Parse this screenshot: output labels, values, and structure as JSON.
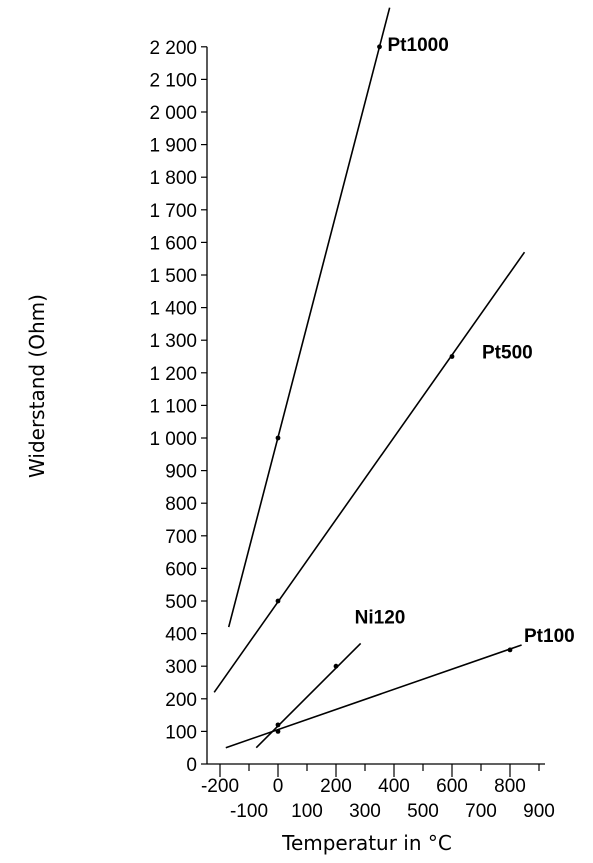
{
  "chart_data": {
    "type": "line",
    "xlabel": "Temperatur in °C",
    "ylabel": "Widerstand (Ohm)",
    "xlim": [
      -230,
      900
    ],
    "ylim": [
      0,
      2200
    ],
    "x_ticks_major": [
      -200,
      0,
      200,
      400,
      600,
      800
    ],
    "x_ticks_minor": [
      -100,
      100,
      300,
      500,
      700,
      900
    ],
    "y_ticks": [
      {
        "value": 0,
        "label": "0"
      },
      {
        "value": 100,
        "label": "100"
      },
      {
        "value": 200,
        "label": "200"
      },
      {
        "value": 300,
        "label": "300"
      },
      {
        "value": 400,
        "label": "400"
      },
      {
        "value": 500,
        "label": "500"
      },
      {
        "value": 600,
        "label": "600"
      },
      {
        "value": 700,
        "label": "700"
      },
      {
        "value": 800,
        "label": "800"
      },
      {
        "value": 900,
        "label": "900"
      },
      {
        "value": 1000,
        "label": "1 000"
      },
      {
        "value": 1100,
        "label": "1 100"
      },
      {
        "value": 1200,
        "label": "1 200"
      },
      {
        "value": 1300,
        "label": "1 300"
      },
      {
        "value": 1400,
        "label": "1 400"
      },
      {
        "value": 1500,
        "label": "1 500"
      },
      {
        "value": 1600,
        "label": "1 600"
      },
      {
        "value": 1700,
        "label": "1 700"
      },
      {
        "value": 1800,
        "label": "1 800"
      },
      {
        "value": 1900,
        "label": "1 900"
      },
      {
        "value": 2000,
        "label": "2 000"
      },
      {
        "value": 2100,
        "label": "2 100"
      },
      {
        "value": 2200,
        "label": "2 200"
      }
    ],
    "grid": false,
    "series": [
      {
        "name": "Pt1000",
        "line": [
          [
            -170,
            420
          ],
          [
            385,
            2320
          ]
        ],
        "markers": [
          [
            0,
            1000
          ],
          [
            350,
            2200
          ]
        ]
      },
      {
        "name": "Pt500",
        "line": [
          [
            -220,
            220
          ],
          [
            850,
            1570
          ]
        ],
        "markers": [
          [
            0,
            500
          ],
          [
            600,
            1250
          ]
        ]
      },
      {
        "name": "Ni120",
        "line": [
          [
            -75,
            50
          ],
          [
            285,
            370
          ]
        ],
        "markers": [
          [
            0,
            120
          ],
          [
            200,
            300
          ]
        ]
      },
      {
        "name": "Pt100",
        "line": [
          [
            -180,
            50
          ],
          [
            840,
            365
          ]
        ],
        "markers": [
          [
            0,
            100
          ],
          [
            800,
            350
          ]
        ]
      }
    ]
  }
}
